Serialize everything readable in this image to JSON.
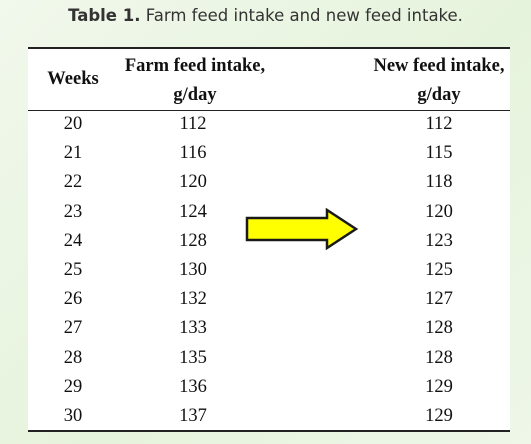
{
  "caption": {
    "label": "Table 1.",
    "text": "Farm feed intake and new feed intake."
  },
  "table": {
    "headers": {
      "weeks": "Weeks",
      "farm_line1": "Farm feed intake,",
      "farm_line2": "g/day",
      "new_line1": "New feed intake,",
      "new_line2": "g/day"
    },
    "rows": [
      {
        "week": "20",
        "farm": "112",
        "new": "112"
      },
      {
        "week": "21",
        "farm": "116",
        "new": "115"
      },
      {
        "week": "22",
        "farm": "120",
        "new": "118"
      },
      {
        "week": "23",
        "farm": "124",
        "new": "120"
      },
      {
        "week": "24",
        "farm": "128",
        "new": "123"
      },
      {
        "week": "25",
        "farm": "130",
        "new": "125"
      },
      {
        "week": "26",
        "farm": "132",
        "new": "127"
      },
      {
        "week": "27",
        "farm": "133",
        "new": "128"
      },
      {
        "week": "28",
        "farm": "135",
        "new": "128"
      },
      {
        "week": "29",
        "farm": "136",
        "new": "129"
      },
      {
        "week": "30",
        "farm": "137",
        "new": "129"
      }
    ]
  },
  "arrow": {
    "icon": "right-arrow-icon",
    "fill": "#ffff00",
    "stroke": "#1a1a1a"
  },
  "colors": {
    "background": "#e6f3dc",
    "panel": "#ffffff",
    "text": "#111111"
  }
}
